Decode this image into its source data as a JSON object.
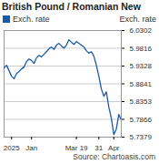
{
  "chart_data": {
    "type": "line",
    "title": "British Pound / Romanian New",
    "ylabel": "Exch. rate",
    "caption": "Source: Chartoasis.com",
    "categories": [
      null,
      null,
      null,
      "2025",
      null,
      null,
      null,
      null,
      null,
      null,
      null,
      "Jan",
      null,
      null,
      null,
      null,
      null,
      null,
      null,
      null,
      null,
      null,
      null,
      null,
      null,
      null,
      null,
      null,
      null,
      "Mar 19",
      null,
      null,
      null,
      null,
      null,
      null,
      null,
      null,
      "31",
      null,
      null,
      null,
      null,
      null,
      "Apr",
      null,
      null,
      null
    ],
    "series": [
      {
        "name": "Exch. rate",
        "color": "#1c5aa8",
        "values": [
          5.928,
          5.935,
          5.92,
          5.905,
          5.898,
          5.912,
          5.918,
          5.925,
          5.93,
          5.945,
          5.952,
          5.948,
          5.94,
          5.955,
          5.962,
          5.958,
          5.965,
          5.972,
          5.98,
          5.985,
          5.978,
          5.99,
          5.995,
          5.988,
          5.982,
          5.99,
          6.005,
          5.998,
          5.992,
          6.0,
          5.995,
          5.99,
          5.985,
          5.975,
          5.968,
          5.972,
          5.96,
          5.935,
          5.905,
          5.87,
          5.85,
          5.862,
          5.82,
          5.79,
          5.745,
          5.76,
          5.8,
          5.785
        ]
      }
    ],
    "ylim": [
      5.7379,
      6.0302
    ],
    "yticks": [
      5.7379,
      5.7866,
      5.8353,
      5.8841,
      5.9328,
      5.9816,
      6.0302
    ],
    "grid": true,
    "legend": "top-left"
  }
}
